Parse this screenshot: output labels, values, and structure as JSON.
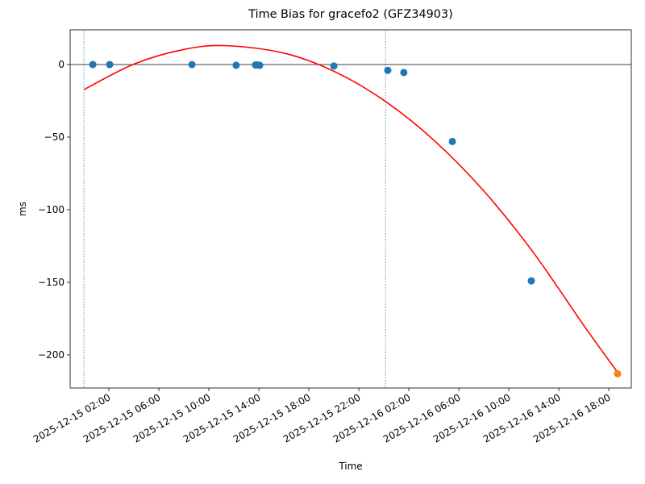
{
  "chart_data": {
    "type": "scatter",
    "title": "Time Bias for gracefo2 (GFZ34903)",
    "xlabel": "Time",
    "ylabel": "ms",
    "xlim": [
      "2025-12-14 22:54",
      "2025-12-16 19:48"
    ],
    "xticks": [
      "2025-12-15 02:00",
      "2025-12-15 06:00",
      "2025-12-15 10:00",
      "2025-12-15 14:00",
      "2025-12-15 18:00",
      "2025-12-15 22:00",
      "2025-12-16 02:00",
      "2025-12-16 06:00",
      "2025-12-16 10:00",
      "2025-12-16 14:00",
      "2025-12-16 18:00"
    ],
    "ylim": [
      -222.8,
      23.9
    ],
    "yticks": [
      0,
      {
        "value": -50,
        "label": "−50"
      },
      {
        "value": -100,
        "label": "−100"
      },
      {
        "value": -150,
        "label": "−150"
      },
      {
        "value": -200,
        "label": "−200"
      }
    ],
    "hline": 0,
    "vlines": [
      "2025-12-15 00:00",
      "2025-12-16 00:08"
    ],
    "series": [
      {
        "type": "scatter",
        "color": "#1f77b4",
        "x": [
          "2025-12-15 00:43",
          "2025-12-15 02:04",
          "2025-12-15 08:39",
          "2025-12-15 12:11",
          "2025-12-15 13:44",
          "2025-12-15 13:52",
          "2025-12-15 14:04",
          "2025-12-15 20:00",
          "2025-12-16 00:19",
          "2025-12-16 01:36",
          "2025-12-16 05:29",
          "2025-12-16 11:48"
        ],
        "values": [
          0,
          0,
          0,
          -0.5,
          -0.3,
          -0.3,
          -0.5,
          -1,
          -4,
          -5.5,
          -53,
          -149
        ]
      },
      {
        "type": "scatter",
        "color": "#ff7f0e",
        "x": [
          "2025-12-16 18:42"
        ],
        "values": [
          -213
        ]
      },
      {
        "type": "line",
        "color": "#ff0000",
        "x": [
          "2025-12-15 00:00",
          "2025-12-15 04:00",
          "2025-12-15 08:00",
          "2025-12-15 11:21",
          "2025-12-15 16:00",
          "2025-12-15 20:00",
          "2025-12-16 00:00",
          "2025-12-16 04:00",
          "2025-12-16 08:00",
          "2025-12-16 12:00",
          "2025-12-16 16:00",
          "2025-12-16 18:42"
        ],
        "values": [
          -17.3,
          0.3,
          10.4,
          13,
          7.9,
          -4.6,
          -24.6,
          -52.1,
          -87.1,
          -129.9,
          -179.7,
          -212
        ]
      }
    ]
  }
}
